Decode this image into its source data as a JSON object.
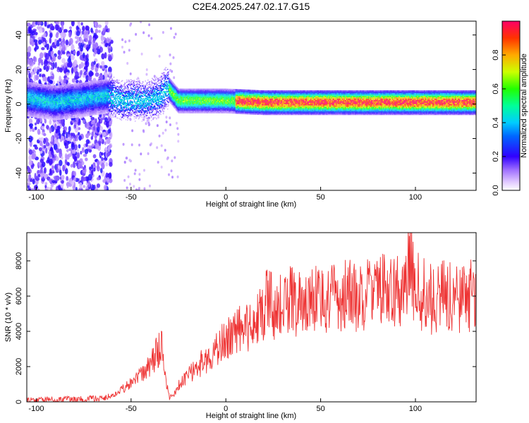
{
  "title": "C2E4.2025.247.02.17.G15",
  "chart_data": [
    {
      "type": "heatmap",
      "xlabel": "Height of straight line (km)",
      "ylabel": "Frequency (Hz)",
      "xlim": [
        -105,
        132
      ],
      "ylim": [
        -50,
        48
      ],
      "xticks": [
        -100,
        -50,
        0,
        50,
        100
      ],
      "yticks": [
        -40,
        -20,
        0,
        20,
        40
      ],
      "colorbar": {
        "label": "Normalized spectral amplitude",
        "range": [
          0,
          1
        ],
        "ticks": [
          "0.0",
          "0.2",
          "0.4",
          "0.6",
          "0.8"
        ],
        "tick_values": [
          0,
          0.2,
          0.4,
          0.6,
          0.8
        ]
      },
      "ridge": {
        "description_points": [
          {
            "x": -103,
            "y": 3
          },
          {
            "x": -90,
            "y": 1
          },
          {
            "x": -75,
            "y": 3
          },
          {
            "x": -62,
            "y": 5
          },
          {
            "x": -55,
            "y": 2
          },
          {
            "x": -48,
            "y": 3
          },
          {
            "x": -42,
            "y": 2
          },
          {
            "x": -35,
            "y": 4
          },
          {
            "x": -31,
            "y": 10
          },
          {
            "x": -25,
            "y": 2
          },
          {
            "x": 0,
            "y": 2
          },
          {
            "x": 20,
            "y": 1
          },
          {
            "x": 50,
            "y": 1
          },
          {
            "x": 100,
            "y": 1
          },
          {
            "x": 132,
            "y": 1
          }
        ]
      }
    },
    {
      "type": "line",
      "xlabel": "Height of straight line (km)",
      "ylabel": "SNR (10 * v/v)",
      "xlim": [
        -105,
        132
      ],
      "ylim": [
        0,
        9600
      ],
      "xticks": [
        -100,
        -50,
        0,
        50,
        100
      ],
      "yticks": [
        0,
        2000,
        4000,
        6000,
        8000
      ],
      "color": "#ee3333",
      "series": [
        {
          "x": [
            -105,
            -90,
            -75,
            -65,
            -60,
            -55,
            -50,
            -45,
            -40,
            -37,
            -34,
            -32,
            -30,
            -27,
            -25,
            -20,
            -15,
            -10,
            -5,
            0,
            5,
            10,
            15,
            20,
            22,
            25,
            30,
            35,
            40,
            45,
            50,
            55,
            60,
            65,
            70,
            75,
            80,
            85,
            90,
            95,
            97,
            100,
            105,
            110,
            115,
            120,
            125,
            132
          ],
          "values": [
            100,
            120,
            150,
            200,
            350,
            700,
            1000,
            1500,
            2100,
            2700,
            3200,
            1500,
            300,
            500,
            900,
            1500,
            2000,
            2500,
            3000,
            3500,
            3900,
            4200,
            4500,
            5000,
            6300,
            5000,
            5500,
            5800,
            5500,
            5800,
            5900,
            5700,
            6000,
            6000,
            5900,
            6100,
            6200,
            6500,
            6400,
            6200,
            8500,
            6400,
            6000,
            5800,
            6000,
            5800,
            6000,
            6000
          ]
        }
      ]
    }
  ]
}
